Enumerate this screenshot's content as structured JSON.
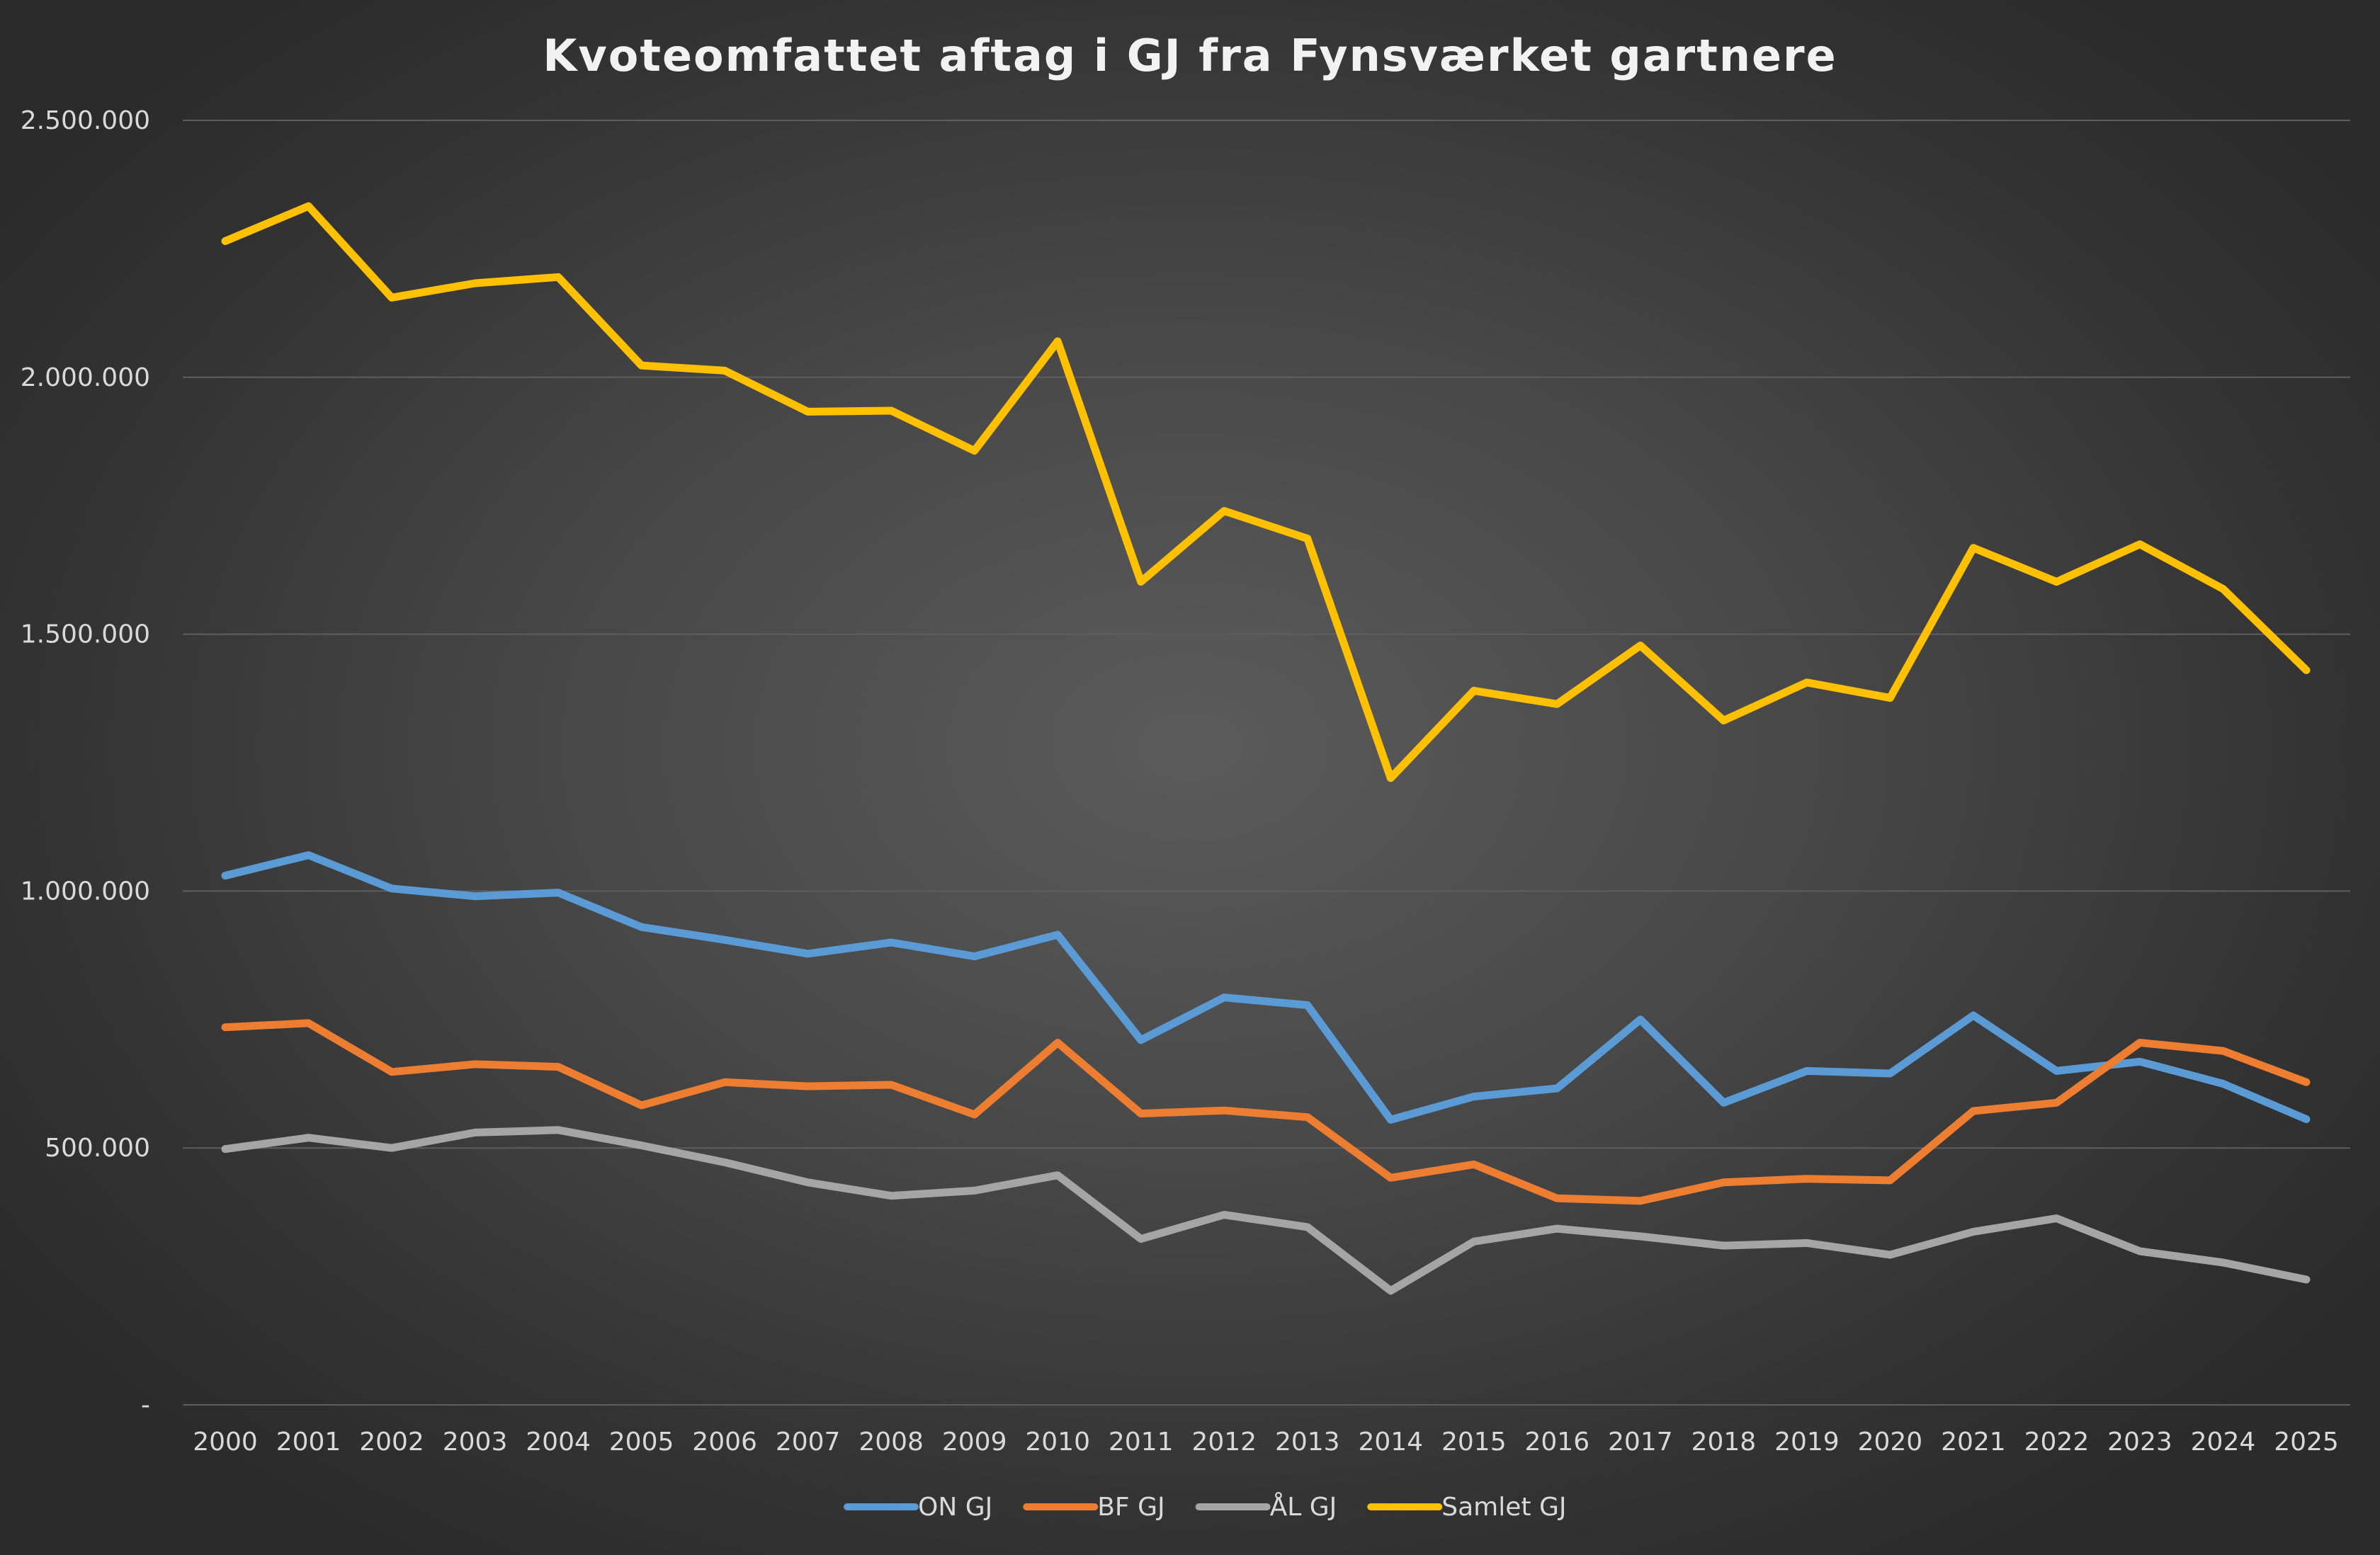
{
  "chart_data": {
    "type": "line",
    "title": "Kvoteomfattet aftag i GJ fra Fynsværket gartnere",
    "x": [
      "2000",
      "2001",
      "2002",
      "2003",
      "2004",
      "2005",
      "2006",
      "2007",
      "2008",
      "2009",
      "2010",
      "2011",
      "2012",
      "2013",
      "2014",
      "2015",
      "2016",
      "2017",
      "2018",
      "2019",
      "2020",
      "2021",
      "2022",
      "2023",
      "2024",
      "2025"
    ],
    "ylim": [
      0,
      2500000
    ],
    "yticks": [
      0,
      500000,
      1000000,
      1500000,
      2000000,
      2500000
    ],
    "ytick_labels": [
      "-",
      "500.000",
      "1.000.000",
      "1.500.000",
      "2.000.000",
      "2.500.000"
    ],
    "grid": true,
    "legend_position": "bottom",
    "series": [
      {
        "name": "ON GJ",
        "color": "#5b9bd5",
        "values": [
          1030000,
          1070000,
          1005000,
          990000,
          997000,
          930000,
          905000,
          878000,
          900000,
          873000,
          915000,
          710000,
          793000,
          778000,
          555000,
          600000,
          616000,
          750000,
          588000,
          650000,
          645000,
          758000,
          650000,
          668000,
          625000,
          556000
        ]
      },
      {
        "name": "BF GJ",
        "color": "#ed7d31",
        "values": [
          735000,
          743000,
          648000,
          663000,
          658000,
          583000,
          628000,
          620000,
          623000,
          565000,
          705000,
          567000,
          573000,
          560000,
          442000,
          468000,
          402000,
          397000,
          433000,
          440000,
          437000,
          572000,
          588000,
          705000,
          689000,
          628000
        ]
      },
      {
        "name": "ÅL GJ",
        "color": "#a5a5a5",
        "values": [
          498000,
          520000,
          500000,
          530000,
          535000,
          505000,
          472000,
          433000,
          407000,
          417000,
          447000,
          323000,
          370000,
          346000,
          222000,
          318000,
          343000,
          328000,
          310000,
          315000,
          292000,
          337000,
          363000,
          299000,
          277000,
          244000
        ]
      },
      {
        "name": "Samlet GJ",
        "color": "#ffc000",
        "values": [
          2265000,
          2333000,
          2155000,
          2183000,
          2195000,
          2023000,
          2013000,
          1933000,
          1935000,
          1857000,
          2070000,
          1602000,
          1740000,
          1686000,
          1220000,
          1390000,
          1364000,
          1478000,
          1332000,
          1406000,
          1376000,
          1668000,
          1602000,
          1675000,
          1588000,
          1430000
        ]
      }
    ]
  }
}
